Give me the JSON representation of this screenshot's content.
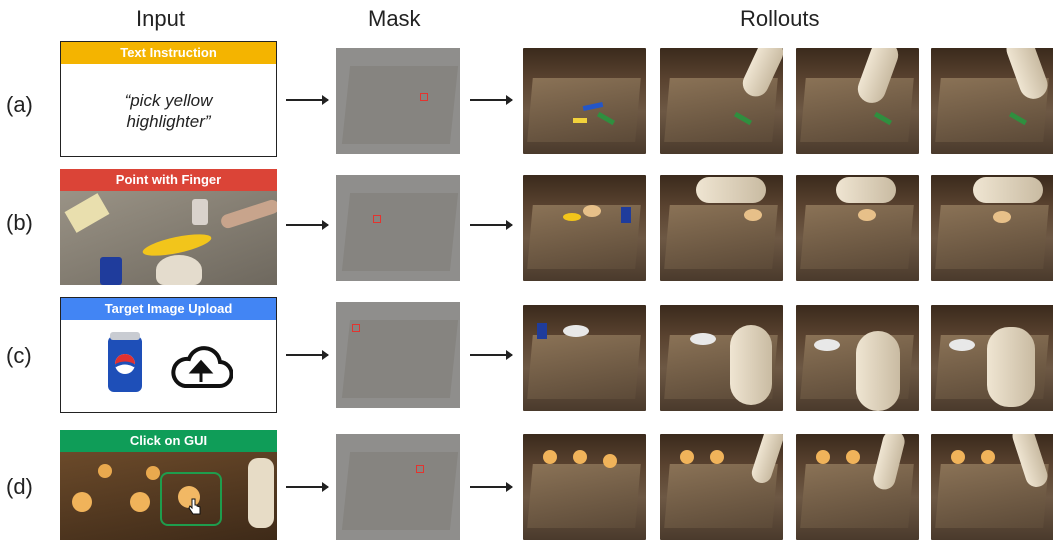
{
  "headers": {
    "input": "Input",
    "mask": "Mask",
    "rollouts": "Rollouts"
  },
  "rows": [
    {
      "label": "(a)",
      "banner": "Text Instruction",
      "banner_color": "#f4b400",
      "content": "“pick yellow highlighter”"
    },
    {
      "label": "(b)",
      "banner": "Point with Finger",
      "banner_color": "#db4437"
    },
    {
      "label": "(c)",
      "banner": "Target Image Upload",
      "banner_color": "#4285f4",
      "icons": [
        "soda-can-icon",
        "cloud-upload-icon"
      ]
    },
    {
      "label": "(d)",
      "banner": "Click on GUI",
      "banner_color": "#0f9d58"
    }
  ]
}
